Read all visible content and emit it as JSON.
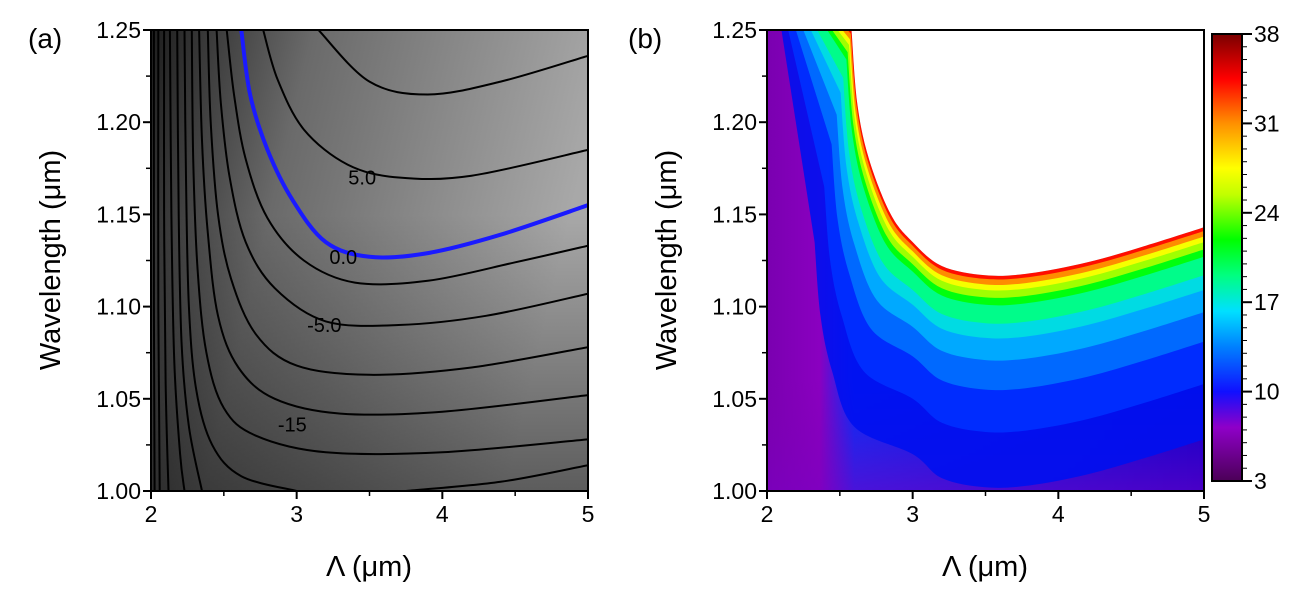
{
  "chart_data": [
    {
      "type": "contour",
      "panel_label": "(a)",
      "xlabel": "Λ (μm)",
      "ylabel": "Wavelength (μm)",
      "xlim": [
        2,
        5
      ],
      "ylim": [
        1.0,
        1.25
      ],
      "xticks": [
        "2",
        "3",
        "4",
        "5"
      ],
      "yticks": [
        "1.00",
        "1.05",
        "1.10",
        "1.15",
        "1.20",
        "1.25"
      ],
      "contour_labels": [
        "5.0",
        "0.0",
        "-5.0",
        "-15"
      ],
      "highlight_level": "0.0",
      "highlight_color": "#1a1aff",
      "contour_lines": [
        {
          "level": "10.0",
          "points": [
            [
              3.15,
              1.25
            ],
            [
              3.5,
              1.222
            ],
            [
              3.9,
              1.215
            ],
            [
              4.4,
              1.222
            ],
            [
              5.0,
              1.236
            ]
          ]
        },
        {
          "level": "5.0",
          "points": [
            [
              2.77,
              1.25
            ],
            [
              2.87,
              1.223
            ],
            [
              3.05,
              1.196
            ],
            [
              3.35,
              1.177
            ],
            [
              3.7,
              1.17
            ],
            [
              4.2,
              1.171
            ],
            [
              5.0,
              1.185
            ]
          ]
        },
        {
          "level": "0.0",
          "points": [
            [
              2.62,
              1.25
            ],
            [
              2.68,
              1.215
            ],
            [
              2.8,
              1.185
            ],
            [
              2.97,
              1.158
            ],
            [
              3.2,
              1.135
            ],
            [
              3.5,
              1.127
            ],
            [
              3.9,
              1.129
            ],
            [
              4.4,
              1.139
            ],
            [
              5.0,
              1.155
            ]
          ]
        },
        {
          "level": "-2.5",
          "points": [
            [
              2.52,
              1.25
            ],
            [
              2.57,
              1.215
            ],
            [
              2.65,
              1.18
            ],
            [
              2.8,
              1.148
            ],
            [
              3.05,
              1.125
            ],
            [
              3.4,
              1.113
            ],
            [
              3.9,
              1.114
            ],
            [
              4.5,
              1.124
            ],
            [
              5.0,
              1.133
            ]
          ]
        },
        {
          "level": "-5.0",
          "points": [
            [
              2.45,
              1.25
            ],
            [
              2.48,
              1.21
            ],
            [
              2.54,
              1.17
            ],
            [
              2.65,
              1.135
            ],
            [
              2.85,
              1.11
            ],
            [
              3.2,
              1.092
            ],
            [
              3.7,
              1.09
            ],
            [
              4.3,
              1.095
            ],
            [
              5.0,
              1.107
            ]
          ]
        },
        {
          "level": "-7.5",
          "points": [
            [
              2.39,
              1.25
            ],
            [
              2.41,
              1.2
            ],
            [
              2.46,
              1.15
            ],
            [
              2.55,
              1.115
            ],
            [
              2.72,
              1.085
            ],
            [
              3.0,
              1.068
            ],
            [
              3.5,
              1.063
            ],
            [
              4.2,
              1.067
            ],
            [
              5.0,
              1.078
            ]
          ]
        },
        {
          "level": "-10",
          "points": [
            [
              2.33,
              1.25
            ],
            [
              2.35,
              1.19
            ],
            [
              2.39,
              1.14
            ],
            [
              2.46,
              1.095
            ],
            [
              2.6,
              1.067
            ],
            [
              2.85,
              1.05
            ],
            [
              3.3,
              1.042
            ],
            [
              4.0,
              1.043
            ],
            [
              5.0,
              1.052
            ]
          ]
        },
        {
          "level": "-12.5",
          "points": [
            [
              2.28,
              1.25
            ],
            [
              2.29,
              1.18
            ],
            [
              2.32,
              1.12
            ],
            [
              2.38,
              1.075
            ],
            [
              2.5,
              1.045
            ],
            [
              2.72,
              1.03
            ],
            [
              3.2,
              1.021
            ],
            [
              4.0,
              1.021
            ],
            [
              5.0,
              1.028
            ]
          ]
        },
        {
          "level": "-15",
          "points": [
            [
              2.23,
              1.25
            ],
            [
              2.24,
              1.17
            ],
            [
              2.26,
              1.1
            ],
            [
              2.31,
              1.055
            ],
            [
              2.42,
              1.025
            ],
            [
              2.62,
              1.008
            ],
            [
              3.0,
              1.0
            ]
          ]
        },
        {
          "level": "-20",
          "points": [
            [
              2.18,
              1.25
            ],
            [
              2.19,
              1.15
            ],
            [
              2.21,
              1.08
            ],
            [
              2.26,
              1.035
            ],
            [
              2.35,
              1.0
            ]
          ]
        },
        {
          "level": "-25",
          "points": [
            [
              2.13,
              1.25
            ],
            [
              2.14,
              1.15
            ],
            [
              2.16,
              1.07
            ],
            [
              2.2,
              1.02
            ],
            [
              2.23,
              1.0
            ]
          ]
        },
        {
          "level": "-30",
          "points": [
            [
              2.09,
              1.25
            ],
            [
              2.09,
              1.15
            ],
            [
              2.1,
              1.06
            ],
            [
              2.12,
              1.0
            ]
          ]
        },
        {
          "level": "-35",
          "points": [
            [
              2.05,
              1.25
            ],
            [
              2.05,
              1.1
            ],
            [
              2.06,
              1.0
            ]
          ]
        },
        {
          "level": "-40",
          "points": [
            [
              2.02,
              1.25
            ],
            [
              2.02,
              1.1
            ],
            [
              2.025,
              1.0
            ]
          ]
        },
        {
          "level": "-20b",
          "points": [
            [
              3.75,
              1.0
            ],
            [
              4.4,
              1.005
            ],
            [
              5.0,
              1.014
            ]
          ]
        }
      ],
      "label_positions": [
        {
          "text": "5.0",
          "x": 3.45,
          "y": 1.17
        },
        {
          "text": "0.0",
          "x": 3.32,
          "y": 1.127
        },
        {
          "text": "-5.0",
          "x": 3.19,
          "y": 1.09
        },
        {
          "text": "-15",
          "x": 2.97,
          "y": 1.036
        }
      ]
    },
    {
      "type": "heatmap",
      "panel_label": "(b)",
      "xlabel": "Λ (μm)",
      "ylabel": "Wavelength (μm)",
      "xlim": [
        2,
        5
      ],
      "ylim": [
        1.0,
        1.25
      ],
      "xticks": [
        "2",
        "3",
        "4",
        "5"
      ],
      "yticks": [
        "1.00",
        "1.05",
        "1.10",
        "1.15",
        "1.20",
        "1.25"
      ],
      "colorbar_ticks": [
        "3",
        "10",
        "17",
        "24",
        "31",
        "38"
      ],
      "colorbar_range": [
        3,
        38
      ],
      "colormap": [
        "#3a0044",
        "#7a00b0",
        "#0000ff",
        "#00c8ff",
        "#00ff00",
        "#ffff00",
        "#ff8000",
        "#ff0000",
        "#8b0000"
      ],
      "undefined_region_color": "#ffffff",
      "boundary_curve": [
        [
          2.58,
          1.25
        ],
        [
          2.62,
          1.21
        ],
        [
          2.7,
          1.18
        ],
        [
          2.85,
          1.15
        ],
        [
          3.0,
          1.135
        ],
        [
          3.2,
          1.122
        ],
        [
          3.5,
          1.117
        ],
        [
          3.8,
          1.118
        ],
        [
          4.2,
          1.124
        ],
        [
          4.6,
          1.133
        ],
        [
          5.0,
          1.143
        ]
      ],
      "value_at_boundary": 38,
      "value_far_field": 7
    }
  ]
}
